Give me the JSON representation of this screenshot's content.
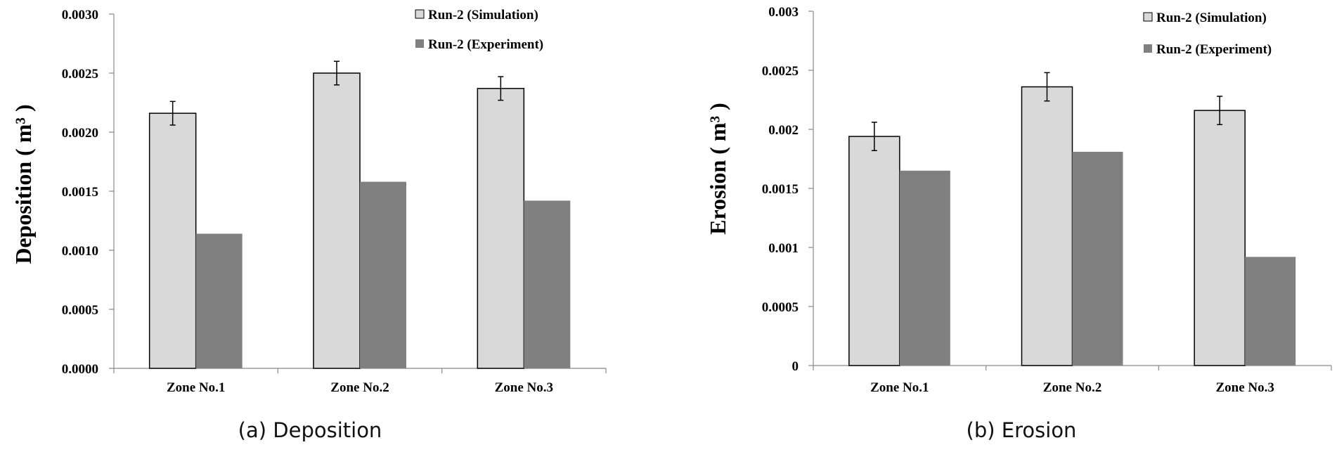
{
  "chart_data": [
    {
      "type": "bar",
      "caption": "(a) Deposition",
      "ylabel": "Deposition ( m³ )",
      "categories": [
        "Zone No.1",
        "Zone No.2",
        "Zone No.3"
      ],
      "series": [
        {
          "name": "Run-2 (Simulation)",
          "values": [
            0.00216,
            0.0025,
            0.00237
          ],
          "errors": [
            0.0001,
            0.0001,
            0.0001
          ],
          "color": "#d9d9d9"
        },
        {
          "name": "Run-2 (Experiment)",
          "values": [
            0.00114,
            0.00158,
            0.00142
          ],
          "color": "#808080"
        }
      ],
      "ylim": [
        0,
        0.003
      ],
      "yticks": [
        0,
        0.0005,
        0.001,
        0.0015,
        0.002,
        0.0025,
        0.003
      ],
      "yticklabels": [
        "0.0000",
        "0.0005",
        "0.0010",
        "0.0015",
        "0.0020",
        "0.0025",
        "0.0030"
      ],
      "legend": "top-right"
    },
    {
      "type": "bar",
      "caption": "(b) Erosion",
      "ylabel": "Erosion ( m³ )",
      "categories": [
        "Zone No.1",
        "Zone No.2",
        "Zone No.3"
      ],
      "series": [
        {
          "name": "Run-2 (Simulation)",
          "values": [
            0.00194,
            0.00236,
            0.00216
          ],
          "errors": [
            0.00012,
            0.00012,
            0.00012
          ],
          "color": "#d9d9d9"
        },
        {
          "name": "Run-2 (Experiment)",
          "values": [
            0.00165,
            0.00181,
            0.00092
          ],
          "color": "#808080"
        }
      ],
      "ylim": [
        0,
        0.003
      ],
      "yticks": [
        0,
        0.0005,
        0.001,
        0.0015,
        0.002,
        0.0025,
        0.003
      ],
      "yticklabels": [
        "0",
        "0.0005",
        "0.001",
        "0.0015",
        "0.002",
        "0.0025",
        "0.003"
      ],
      "legend": "top-right"
    }
  ]
}
